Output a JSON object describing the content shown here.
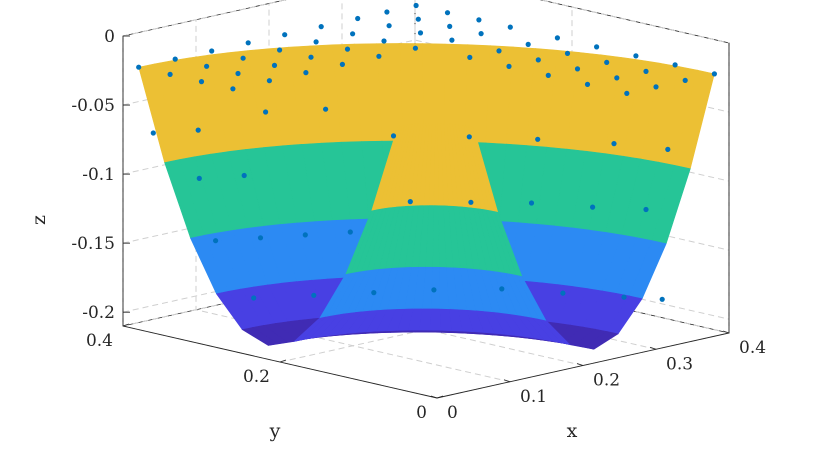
{
  "chart_data": {
    "type": "surface",
    "title": "",
    "xlabel": "x",
    "ylabel": "y",
    "zlabel": "z",
    "xlim": [
      0,
      0.4
    ],
    "ylim": [
      0,
      0.4
    ],
    "zlim": [
      -0.21,
      0
    ],
    "xticks": [
      "0",
      "0.1",
      "0.2",
      "0.3",
      "0.4"
    ],
    "yticks": [
      "0",
      "0.2",
      "0.4"
    ],
    "zticks": [
      "0",
      "-0.05",
      "-0.1",
      "-0.15",
      "-0.2"
    ],
    "grid": true,
    "box": true,
    "colormap": "parula",
    "colormap_colors": [
      "#3e26a8",
      "#4a46f2",
      "#2e87f7",
      "#13aec7",
      "#26c597",
      "#89ca5d",
      "#d7ba2d",
      "#fcc43a",
      "#f9fb0e"
    ],
    "marker_color": "#0072bd",
    "surface": {
      "description_from_image": "quarter-annulus paraboloid bowl",
      "z_rim": -0.02,
      "z_bottom": -0.2,
      "inner_radius": 0.3,
      "outer_radius": 0.4
    },
    "scatter_points": [
      [
        0.0,
        0.26,
        -0.02
      ],
      [
        0.0,
        0.3,
        -0.02
      ],
      [
        0.0,
        0.34,
        -0.02
      ],
      [
        0.0,
        0.38,
        -0.02
      ],
      [
        0.05,
        0.26,
        -0.02
      ],
      [
        0.05,
        0.3,
        -0.02
      ],
      [
        0.05,
        0.34,
        -0.02
      ],
      [
        0.05,
        0.38,
        -0.02
      ],
      [
        0.1,
        0.26,
        -0.02
      ],
      [
        0.1,
        0.3,
        -0.02
      ],
      [
        0.1,
        0.34,
        -0.02
      ],
      [
        0.1,
        0.38,
        -0.02
      ],
      [
        0.15,
        0.26,
        -0.02
      ],
      [
        0.15,
        0.3,
        -0.02
      ],
      [
        0.15,
        0.34,
        -0.02
      ],
      [
        0.15,
        0.38,
        -0.02
      ],
      [
        0.2,
        0.26,
        -0.02
      ],
      [
        0.2,
        0.3,
        -0.02
      ],
      [
        0.2,
        0.34,
        -0.02
      ],
      [
        0.2,
        0.38,
        -0.02
      ],
      [
        0.25,
        0.26,
        -0.02
      ],
      [
        0.25,
        0.3,
        -0.02
      ],
      [
        0.25,
        0.34,
        -0.02
      ],
      [
        0.25,
        0.38,
        -0.02
      ],
      [
        0.3,
        0.26,
        -0.02
      ],
      [
        0.3,
        0.3,
        -0.02
      ],
      [
        0.3,
        0.34,
        -0.02
      ],
      [
        0.3,
        0.38,
        -0.02
      ],
      [
        0.34,
        0.26,
        -0.02
      ],
      [
        0.34,
        0.3,
        -0.02
      ],
      [
        0.34,
        0.34,
        -0.02
      ],
      [
        0.34,
        0.38,
        -0.02
      ],
      [
        0.38,
        0.26,
        -0.02
      ],
      [
        0.38,
        0.3,
        -0.02
      ],
      [
        0.38,
        0.34,
        -0.02
      ],
      [
        0.38,
        0.38,
        -0.02
      ],
      [
        0.26,
        0.0,
        -0.02
      ],
      [
        0.26,
        0.05,
        -0.02
      ],
      [
        0.26,
        0.1,
        -0.02
      ],
      [
        0.26,
        0.15,
        -0.02
      ],
      [
        0.26,
        0.2,
        -0.02
      ],
      [
        0.3,
        0.0,
        -0.02
      ],
      [
        0.3,
        0.05,
        -0.02
      ],
      [
        0.3,
        0.1,
        -0.02
      ],
      [
        0.3,
        0.15,
        -0.02
      ],
      [
        0.3,
        0.2,
        -0.02
      ],
      [
        0.34,
        0.0,
        -0.02
      ],
      [
        0.34,
        0.05,
        -0.02
      ],
      [
        0.34,
        0.1,
        -0.02
      ],
      [
        0.34,
        0.15,
        -0.02
      ],
      [
        0.34,
        0.2,
        -0.02
      ],
      [
        0.38,
        0.0,
        -0.02
      ],
      [
        0.38,
        0.05,
        -0.02
      ],
      [
        0.38,
        0.1,
        -0.02
      ],
      [
        0.38,
        0.15,
        -0.02
      ],
      [
        0.38,
        0.2,
        -0.02
      ],
      [
        0.02,
        0.38,
        -0.07
      ],
      [
        0.06,
        0.36,
        -0.07
      ],
      [
        0.04,
        0.34,
        -0.1
      ],
      [
        0.08,
        0.32,
        -0.1
      ],
      [
        0.03,
        0.31,
        -0.14
      ],
      [
        0.07,
        0.29,
        -0.14
      ],
      [
        0.11,
        0.27,
        -0.14
      ],
      [
        0.15,
        0.25,
        -0.14
      ],
      [
        0.05,
        0.28,
        -0.18
      ],
      [
        0.1,
        0.25,
        -0.18
      ],
      [
        0.15,
        0.22,
        -0.18
      ],
      [
        0.2,
        0.19,
        -0.18
      ],
      [
        0.25,
        0.15,
        -0.18
      ],
      [
        0.28,
        0.1,
        -0.18
      ],
      [
        0.31,
        0.05,
        -0.18
      ],
      [
        0.33,
        0.02,
        -0.18
      ],
      [
        0.2,
        0.22,
        -0.12
      ],
      [
        0.24,
        0.18,
        -0.12
      ],
      [
        0.28,
        0.14,
        -0.12
      ],
      [
        0.31,
        0.09,
        -0.12
      ],
      [
        0.34,
        0.05,
        -0.12
      ],
      [
        0.22,
        0.26,
        -0.08
      ],
      [
        0.27,
        0.21,
        -0.08
      ],
      [
        0.31,
        0.16,
        -0.08
      ],
      [
        0.35,
        0.1,
        -0.08
      ],
      [
        0.37,
        0.05,
        -0.08
      ],
      [
        0.12,
        0.33,
        -0.06
      ],
      [
        0.17,
        0.3,
        -0.06
      ]
    ]
  }
}
